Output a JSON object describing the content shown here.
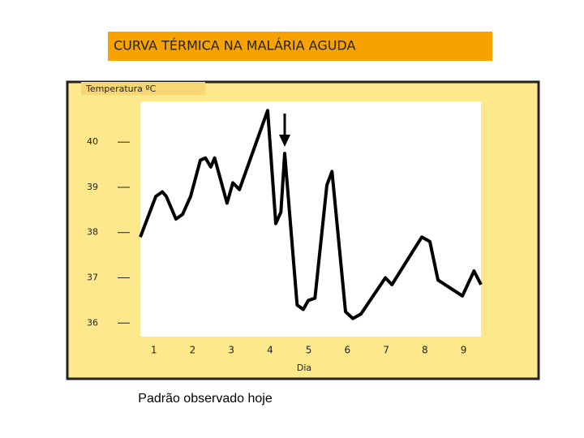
{
  "chart_data": {
    "type": "line",
    "title": "CURVA TÉRMICA NA MALÁRIA AGUDA",
    "ylabel": "Temperatura ºC",
    "xlabel": "Dia",
    "x": [
      0.65,
      1.05,
      1.22,
      1.32,
      1.57,
      1.74,
      1.95,
      2.2,
      2.33,
      2.47,
      2.57,
      2.89,
      3.04,
      3.21,
      3.94,
      4.15,
      4.28,
      4.38,
      4.7,
      4.86,
      4.99,
      5.16,
      5.47,
      5.6,
      5.95,
      6.14,
      6.35,
      6.98,
      7.15,
      7.92,
      8.13,
      8.34,
      8.97,
      9.27,
      9.45
    ],
    "values": [
      37.9,
      38.8,
      38.9,
      38.8,
      38.3,
      38.4,
      38.8,
      39.6,
      39.65,
      39.45,
      39.65,
      38.65,
      39.1,
      38.95,
      40.7,
      38.2,
      38.45,
      39.75,
      36.4,
      36.3,
      36.5,
      36.55,
      39.05,
      39.35,
      36.25,
      36.1,
      36.2,
      37.0,
      36.85,
      37.9,
      37.8,
      36.95,
      36.6,
      37.15,
      36.85
    ],
    "color": "#000000",
    "xlim": [
      0.65,
      9.45
    ],
    "xticks": [
      1,
      2,
      3,
      4,
      5,
      6,
      7,
      8,
      9
    ],
    "ylim": [
      35.7,
      40.9
    ],
    "yticks": [
      40,
      39,
      38,
      37,
      36
    ]
  },
  "caption": "Padrão observado hoje"
}
